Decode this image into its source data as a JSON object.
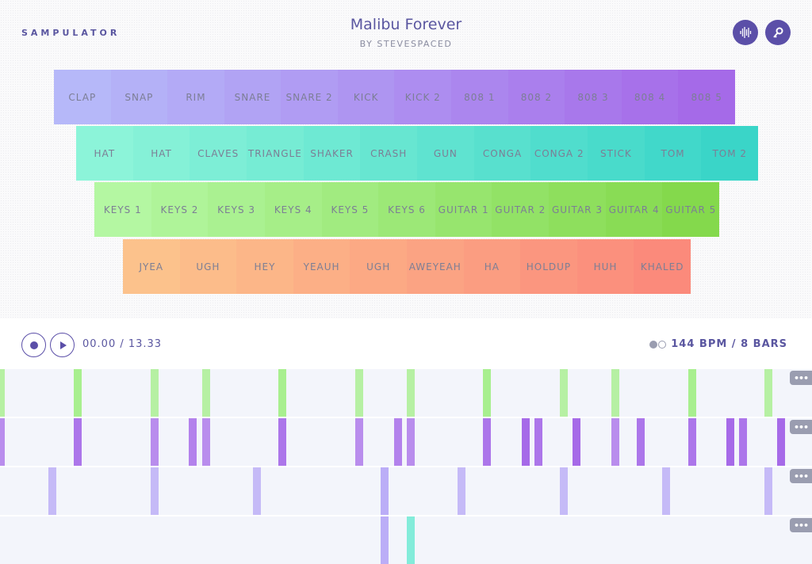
{
  "app": {
    "name": "SAMPULATOR",
    "song_title": "Malibu Forever",
    "artist": "BY STEVESPACED",
    "icons": [
      "waveform-icon",
      "key-icon"
    ]
  },
  "pads": [
    {
      "colors": [
        "#b6b8f9",
        "#a56ae8"
      ],
      "labels": [
        "CLAP",
        "SNAP",
        "RIM",
        "SNARE",
        "SNARE 2",
        "KICK",
        "KICK 2",
        "808 1",
        "808 2",
        "808 3",
        "808 4",
        "808 5"
      ]
    },
    {
      "colors": [
        "#8cf4d9",
        "#3ad5c8"
      ],
      "labels": [
        "HAT",
        "HAT",
        "CLAVES",
        "TRIANGLE",
        "SHAKER",
        "CRASH",
        "GUN",
        "CONGA",
        "CONGA 2",
        "STICK",
        "TOM",
        "TOM 2"
      ]
    },
    {
      "colors": [
        "#b4f7a2",
        "#84d94c"
      ],
      "labels": [
        "KEYS 1",
        "KEYS 2",
        "KEYS 3",
        "KEYS 4",
        "KEYS 5",
        "KEYS 6",
        "GUITAR 1",
        "GUITAR 2",
        "GUITAR 3",
        "GUITAR 4",
        "GUITAR 5"
      ]
    },
    {
      "colors": [
        "#fcc28c",
        "#fb8a7b"
      ],
      "labels": [
        "JYEA",
        "UGH",
        "HEY",
        "YEAUH",
        "UGH",
        "AWEYEAH",
        "HA",
        "HOLDUP",
        "HUH",
        "KHALED"
      ]
    }
  ],
  "transport": {
    "time": "00.00 / 13.33",
    "tempo": "144 BPM / 8 BARS",
    "more_label": "•••"
  },
  "sequencer": {
    "steps": 64,
    "tracks": [
      {
        "color": "#a2ee86",
        "steps": [
          0,
          6,
          12,
          16,
          22,
          28,
          32,
          38,
          44,
          48,
          54,
          60
        ]
      },
      {
        "color": "#a66ae8",
        "steps": [
          0,
          6,
          12,
          15,
          16,
          22,
          28,
          31,
          32,
          38,
          41,
          42,
          45,
          48,
          50,
          54,
          57,
          58,
          61
        ]
      },
      {
        "color": "#b6a6f6",
        "steps": [
          4,
          12,
          20,
          30,
          36,
          44,
          52,
          60
        ]
      },
      {
        "color": "#b6a6f6",
        "steps": [
          30,
          32
        ],
        "accent": {
          "step": 32,
          "color": "#5ee8cf"
        }
      }
    ]
  }
}
